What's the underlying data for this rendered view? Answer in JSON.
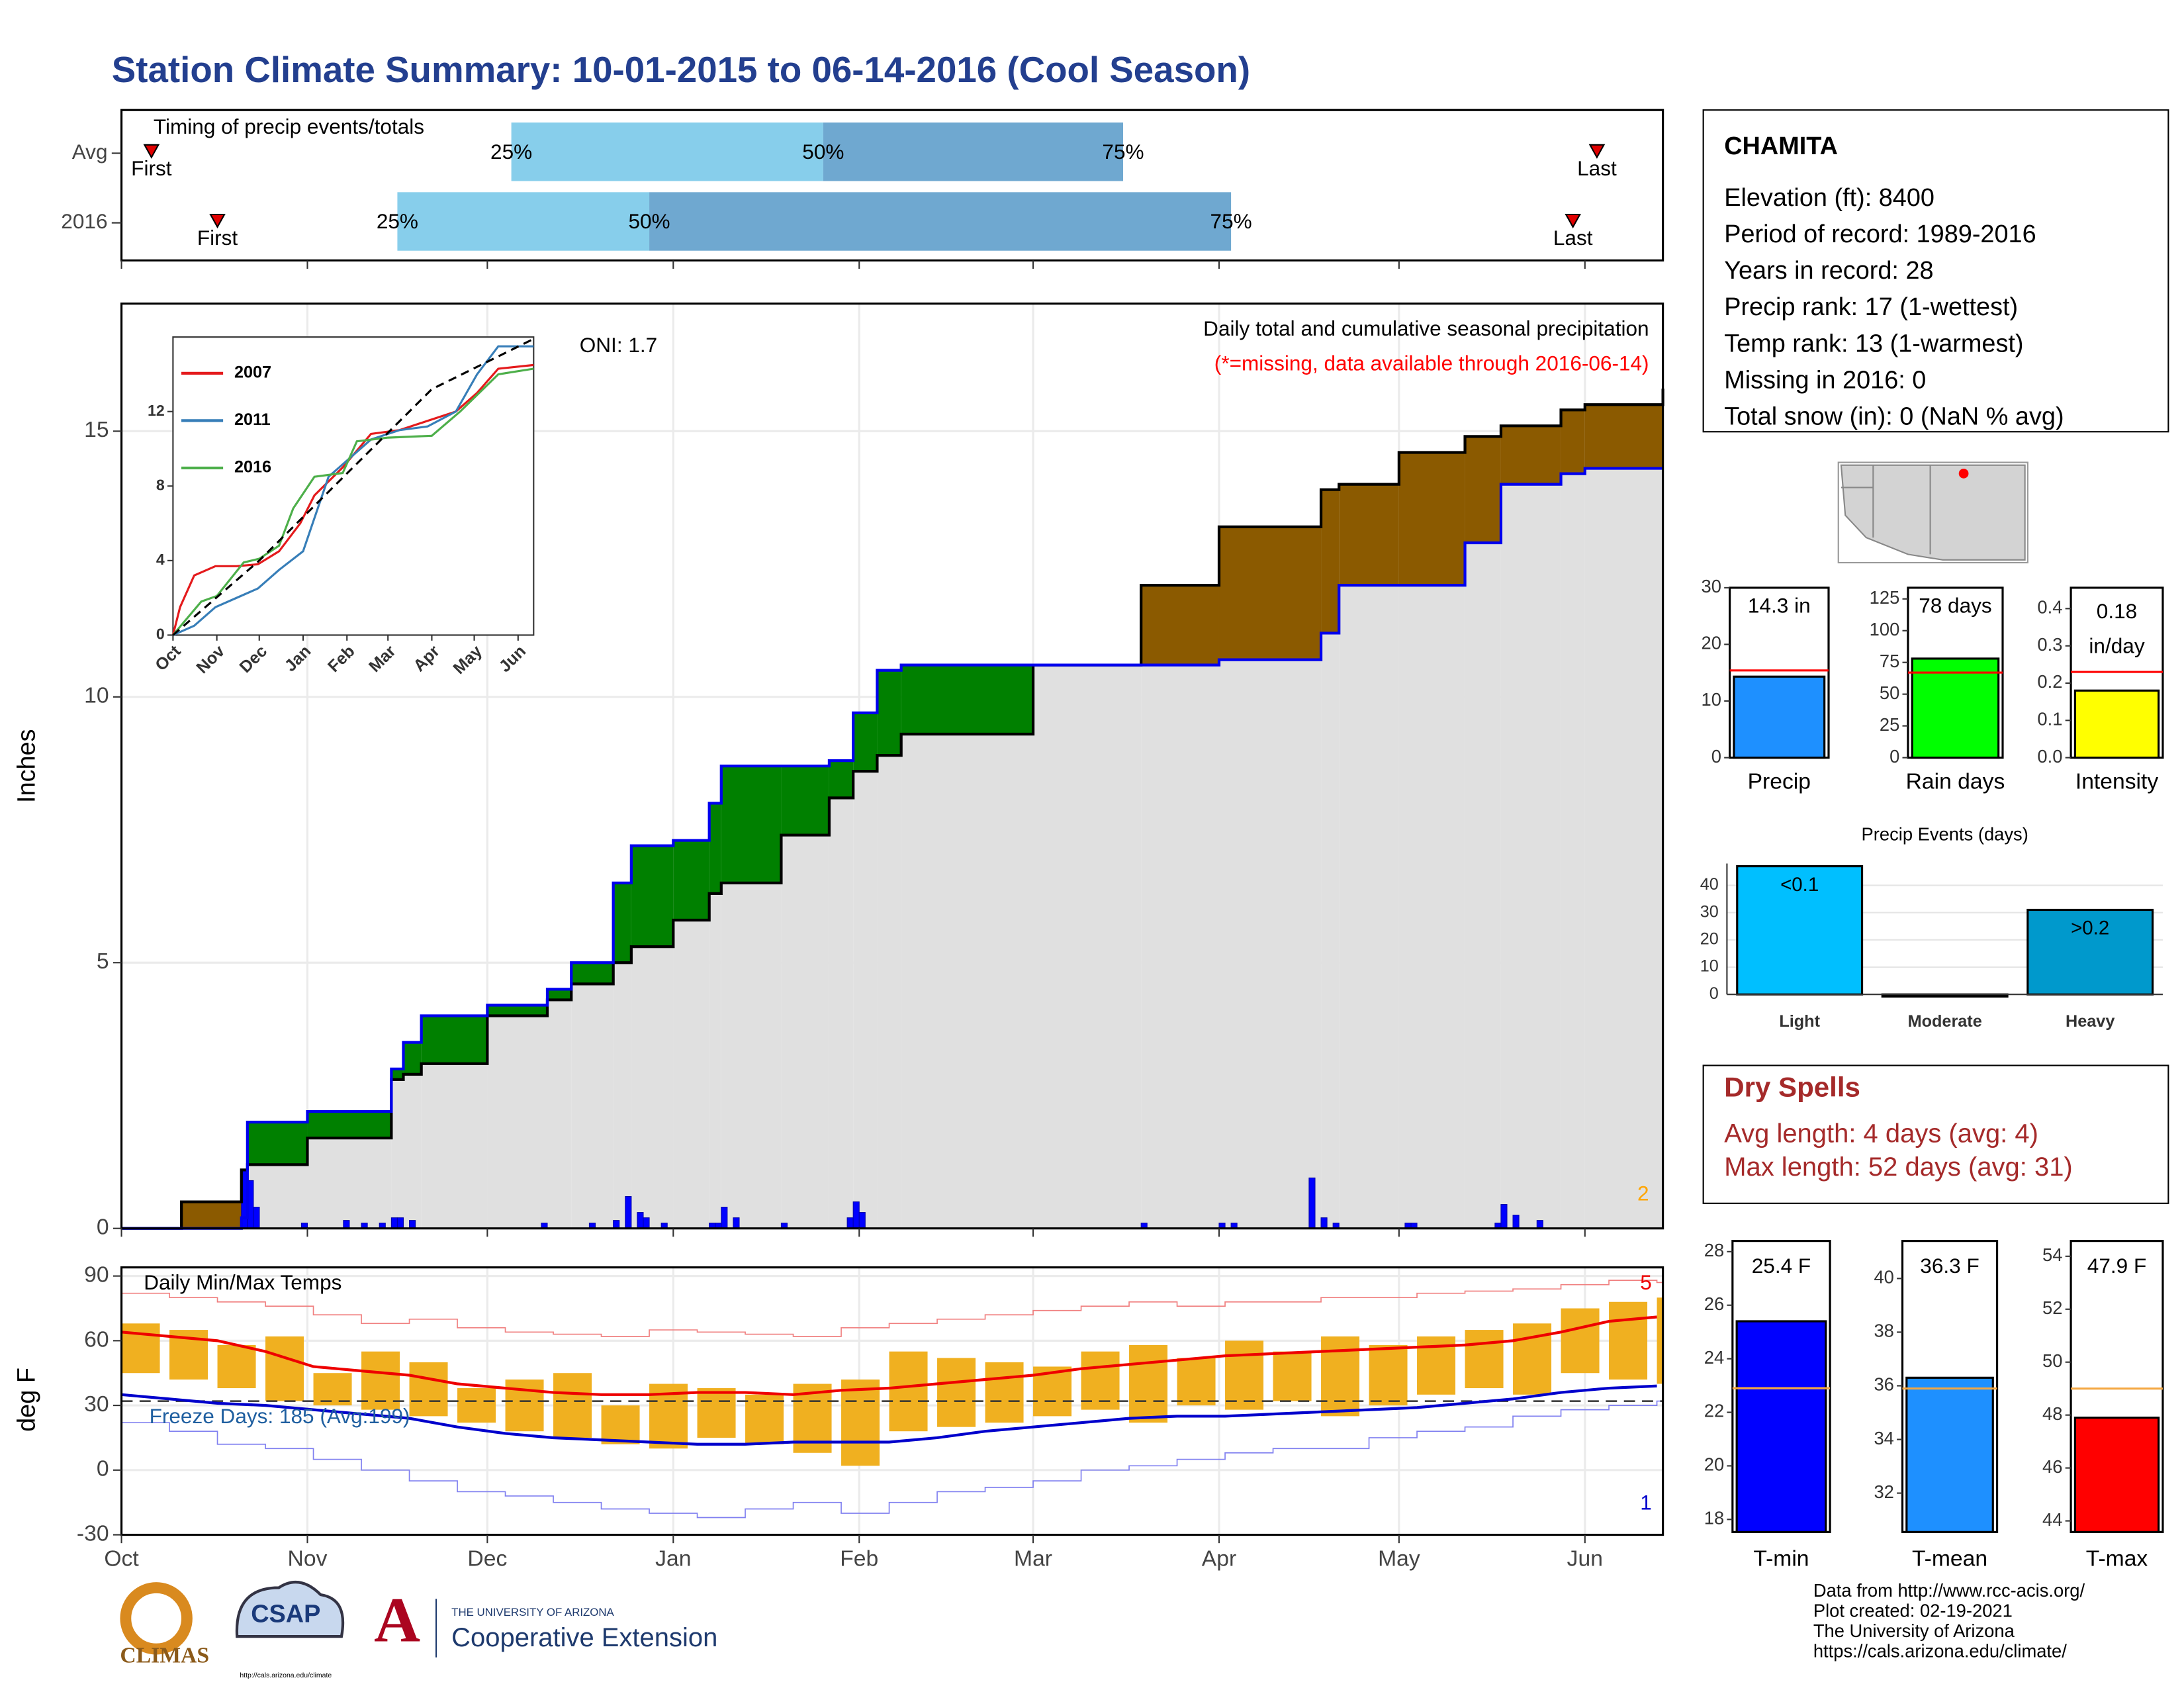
{
  "title": "Station Climate Summary: 10-01-2015 to 06-14-2016 (Cool Season)",
  "station": {
    "name": "CHAMITA",
    "lines": [
      "Elevation (ft): 8400",
      "Period of record: 1989-2016",
      "Years in record: 28",
      "Precip rank: 17 (1-wettest)",
      "Temp rank: 13 (1-warmest)",
      "Missing in 2016: 0",
      "Total snow (in): 0 (NaN % avg)"
    ]
  },
  "dry_spells": {
    "title": "Dry Spells",
    "lines": [
      "Avg length: 4 days (avg: 4)",
      "Max length: 52 days (avg: 31)"
    ]
  },
  "footer": [
    "Data from http://www.rcc-acis.org/",
    "Plot created: 02-19-2021",
    "The University of Arizona",
    "https://cals.arizona.edu/climate/"
  ],
  "logos": {
    "climas": "CLIMAS",
    "csap": "CSAP",
    "csap_url": "http://cals.arizona.edu/climate",
    "university": "THE UNIVERSITY OF ARIZONA",
    "extension": "Cooperative Extension"
  },
  "chart_data": [
    {
      "type": "timing",
      "title": "Timing of precip events/totals",
      "labels": [
        "First",
        "25%",
        "50%",
        "75%",
        "Last"
      ],
      "series": [
        {
          "name": "Avg",
          "values": [
            5,
            65,
            117,
            167,
            246
          ]
        },
        {
          "name": "2016",
          "values": [
            16,
            46,
            88,
            185,
            242
          ]
        }
      ],
      "colors": [
        "#87ceeb",
        "#6fa8d0"
      ],
      "marker_color": "#e00000",
      "xlim": [
        0,
        257
      ],
      "xticks": [
        0,
        31,
        61,
        92,
        123,
        152,
        183,
        213,
        244
      ]
    },
    {
      "type": "area",
      "title": "Daily total and cumulative seasonal precipitation",
      "subtitle": "(*=missing, data available through 2016-06-14)",
      "annotation": "ONI: 1.7",
      "corner_label": "2",
      "ylabel": "Inches",
      "xlim": [
        0,
        257
      ],
      "ylim": [
        0,
        17.4
      ],
      "yticks": [
        0,
        5,
        10,
        15
      ],
      "xticks": [
        0,
        31,
        61,
        92,
        123,
        152,
        183,
        213,
        244
      ],
      "grid": true,
      "x": [
        0,
        10,
        20,
        21,
        31,
        45,
        47,
        50,
        61,
        71,
        75,
        82,
        85,
        92,
        98,
        100,
        110,
        118,
        122,
        126,
        130,
        152,
        170,
        183,
        200,
        203,
        213,
        224,
        230,
        240,
        244,
        257
      ],
      "series": [
        {
          "color": "#0000ee",
          "values": [
            0,
            0,
            0.2,
            2.0,
            2.2,
            3.0,
            3.5,
            4.0,
            4.2,
            4.5,
            5.0,
            6.5,
            7.2,
            7.3,
            8.0,
            8.7,
            8.7,
            8.8,
            9.7,
            10.5,
            10.6,
            10.6,
            10.6,
            10.7,
            11.2,
            12.1,
            12.1,
            12.9,
            14.0,
            14.2,
            14.3,
            14.3
          ]
        },
        {
          "color": "#000000",
          "values": [
            0,
            0.5,
            1.1,
            1.2,
            1.7,
            2.8,
            2.9,
            3.1,
            4.0,
            4.3,
            4.6,
            5.0,
            5.3,
            5.8,
            6.3,
            6.5,
            7.4,
            8.1,
            8.6,
            8.9,
            9.3,
            10.6,
            12.1,
            13.2,
            13.9,
            14.0,
            14.6,
            14.9,
            15.1,
            15.4,
            15.5,
            15.8
          ]
        }
      ],
      "above_color": "#008000",
      "below_color": "#8b5a00",
      "base_color": "#e0e0e0",
      "daily": {
        "color": "#0000ff",
        "x": [
          20,
          21,
          22,
          30,
          37,
          40,
          43,
          45,
          46,
          48,
          70,
          78,
          82,
          84,
          86,
          87,
          90,
          98,
          99,
          100,
          102,
          110,
          121,
          122,
          123,
          170,
          183,
          185,
          198,
          200,
          202,
          214,
          215,
          229,
          230,
          232,
          236
        ],
        "values": [
          1.1,
          0.9,
          0.4,
          0.1,
          0.15,
          0.1,
          0.1,
          0.2,
          0.2,
          0.15,
          0.1,
          0.1,
          0.15,
          0.6,
          0.3,
          0.2,
          0.1,
          0.1,
          0.1,
          0.4,
          0.2,
          0.1,
          0.2,
          0.5,
          0.3,
          0.1,
          0.1,
          0.1,
          0.95,
          0.2,
          0.1,
          0.1,
          0.1,
          0.1,
          0.45,
          0.25,
          0.15
        ]
      }
    },
    {
      "type": "line",
      "xlim": [
        0,
        255
      ],
      "ylim": [
        0,
        16
      ],
      "yticks": [
        0,
        4,
        8,
        12
      ],
      "xticks": [
        {
          "value": 0,
          "label": "Oct"
        },
        {
          "value": 31,
          "label": "Nov"
        },
        {
          "value": 61,
          "label": "Dec"
        },
        {
          "value": 92,
          "label": "Jan"
        },
        {
          "value": 123,
          "label": "Feb"
        },
        {
          "value": 152,
          "label": "Mar"
        },
        {
          "value": 183,
          "label": "Apr"
        },
        {
          "value": 213,
          "label": "May"
        },
        {
          "value": 244,
          "label": "Jun"
        }
      ],
      "series": [
        {
          "name": "2007",
          "color": "#e41a1c",
          "x": [
            0,
            5,
            15,
            30,
            45,
            60,
            75,
            90,
            100,
            120,
            140,
            160,
            180,
            200,
            215,
            230,
            255
          ],
          "values": [
            0,
            1.5,
            3.2,
            3.7,
            3.7,
            3.8,
            4.5,
            6,
            7.5,
            9,
            10.8,
            11,
            11.5,
            12,
            13,
            14.3,
            14.5
          ]
        },
        {
          "name": "2011",
          "color": "#377eb8",
          "x": [
            0,
            15,
            30,
            45,
            60,
            75,
            92,
            110,
            125,
            140,
            160,
            180,
            200,
            215,
            230,
            255
          ],
          "values": [
            0,
            0.5,
            1.5,
            2.0,
            2.5,
            3.5,
            4.5,
            8.5,
            9.5,
            10.5,
            11,
            11.2,
            12,
            14,
            15.5,
            15.5
          ]
        },
        {
          "name": "2016",
          "color": "#4daf4a",
          "x": [
            0,
            20,
            31,
            50,
            61,
            75,
            85,
            100,
            120,
            130,
            152,
            183,
            203,
            230,
            255
          ],
          "values": [
            0,
            1.8,
            2.1,
            3.9,
            4.1,
            4.8,
            6.8,
            8.5,
            8.7,
            10.4,
            10.6,
            10.7,
            12,
            14,
            14.3
          ]
        },
        {
          "color": "#000000",
          "dash": true,
          "x": [
            0,
            61,
            122,
            183,
            255
          ],
          "values": [
            0,
            4,
            8.6,
            13.2,
            15.9
          ]
        }
      ]
    },
    {
      "type": "range",
      "title": "Daily Min/Max Temps",
      "annotation": "Freeze Days: 185 (Avg:199)",
      "corner_labels": [
        "5",
        "1"
      ],
      "ylabel": "deg F",
      "xlim": [
        0,
        257
      ],
      "ylim": [
        -30,
        94
      ],
      "yticks": [
        -30,
        0,
        30,
        60,
        90
      ],
      "grid": true,
      "xticks": [
        {
          "value": 0,
          "label": "Oct"
        },
        {
          "value": 31,
          "label": "Nov"
        },
        {
          "value": 61,
          "label": "Dec"
        },
        {
          "value": 92,
          "label": "Jan"
        },
        {
          "value": 123,
          "label": "Feb"
        },
        {
          "value": 152,
          "label": "Mar"
        },
        {
          "value": 183,
          "label": "Apr"
        },
        {
          "value": 213,
          "label": "May"
        },
        {
          "value": 244,
          "label": "Jun"
        }
      ],
      "x": [
        0,
        8,
        16,
        24,
        32,
        40,
        48,
        56,
        64,
        72,
        80,
        88,
        96,
        104,
        112,
        120,
        128,
        136,
        144,
        152,
        160,
        168,
        176,
        184,
        192,
        200,
        208,
        216,
        224,
        232,
        240,
        248,
        256
      ],
      "low": [
        45,
        42,
        38,
        32,
        30,
        28,
        25,
        22,
        18,
        15,
        12,
        10,
        15,
        12,
        8,
        2,
        18,
        20,
        22,
        25,
        28,
        22,
        30,
        28,
        32,
        25,
        30,
        35,
        38,
        35,
        45,
        42,
        40
      ],
      "high": [
        68,
        65,
        58,
        62,
        45,
        55,
        50,
        38,
        42,
        45,
        30,
        40,
        38,
        35,
        40,
        42,
        55,
        52,
        50,
        48,
        55,
        58,
        52,
        60,
        55,
        62,
        58,
        62,
        65,
        68,
        75,
        78,
        80
      ],
      "color": "#f0b020",
      "series": [
        {
          "color": "#ee0000",
          "width": 2,
          "values": [
            64,
            62,
            60,
            55,
            48,
            46,
            44,
            40,
            38,
            36,
            35,
            35,
            36,
            36,
            35,
            37,
            38,
            40,
            42,
            44,
            47,
            49,
            51,
            53,
            54,
            55,
            56,
            57,
            58,
            60,
            64,
            69,
            71
          ]
        },
        {
          "color": "#0000cc",
          "width": 2,
          "values": [
            35,
            33,
            31,
            30,
            28,
            26,
            24,
            20,
            17,
            15,
            14,
            13,
            12,
            12,
            13,
            13,
            13,
            15,
            18,
            20,
            22,
            24,
            25,
            25,
            26,
            27,
            28,
            29,
            31,
            33,
            36,
            38,
            39
          ]
        },
        {
          "color": "#f08080",
          "width": 0.8,
          "step": true,
          "values": [
            82,
            80,
            78,
            76,
            72,
            68,
            70,
            66,
            64,
            63,
            62,
            65,
            64,
            63,
            62,
            66,
            68,
            70,
            72,
            74,
            76,
            78,
            76,
            78,
            78,
            80,
            80,
            82,
            83,
            84,
            86,
            88,
            87
          ]
        },
        {
          "color": "#8080f0",
          "width": 0.8,
          "step": true,
          "values": [
            22,
            18,
            12,
            10,
            5,
            0,
            -5,
            -10,
            -12,
            -15,
            -18,
            -20,
            -22,
            -18,
            -15,
            -20,
            -15,
            -10,
            -8,
            -5,
            0,
            2,
            5,
            8,
            10,
            10,
            15,
            18,
            20,
            25,
            28,
            30,
            32
          ]
        }
      ],
      "freeze": 32
    },
    {
      "type": "bar",
      "categories": [
        "Precip"
      ],
      "values": [
        14.3
      ],
      "value_labels": [
        "14.3 in"
      ],
      "average": 15.4,
      "average_color": "#ff0000",
      "color": "#1e90ff",
      "ylim": [
        0,
        30
      ],
      "yticks": [
        0,
        10,
        20,
        30
      ]
    },
    {
      "type": "bar",
      "categories": [
        "Rain days"
      ],
      "values": [
        78
      ],
      "value_labels": [
        "78 days"
      ],
      "average": 67,
      "average_color": "#ff0000",
      "color": "#00ff00",
      "ylim": [
        0,
        133.8
      ],
      "yticks": [
        0,
        25,
        50,
        75,
        100,
        125
      ]
    },
    {
      "type": "bar",
      "categories": [
        "Intensity"
      ],
      "values": [
        0.18
      ],
      "value_labels": [
        "0.18"
      ],
      "unit": "in/day",
      "average": 0.23,
      "average_color": "#ff0000",
      "color": "#ffff00",
      "ylim": [
        0,
        0.456
      ],
      "yticks": [
        {
          "value": 0,
          "label": "0.0"
        },
        {
          "value": 0.1,
          "label": "0.1"
        },
        {
          "value": 0.2,
          "label": "0.2"
        },
        {
          "value": 0.3,
          "label": "0.3"
        },
        {
          "value": 0.4,
          "label": "0.4"
        }
      ]
    },
    {
      "type": "events",
      "title": "Precip Events (days)",
      "categories": [
        "Light",
        "Moderate",
        "Heavy"
      ],
      "values": [
        47,
        0,
        31
      ],
      "bar_labels": [
        "<0.1",
        null,
        ">0.2"
      ],
      "colors": [
        "#00bfff",
        "#00bfff",
        "#0099cc"
      ],
      "ylim": [
        0,
        48
      ],
      "yticks": [
        0,
        10,
        20,
        30,
        40
      ],
      "grid": true
    },
    {
      "type": "bar",
      "categories": [
        "T-min"
      ],
      "values": [
        25.4
      ],
      "value_labels": [
        "25.4 F"
      ],
      "average": 22.9,
      "average_color": "#f4a742",
      "color": "#0000ff",
      "ylim": [
        17.53,
        28.4
      ],
      "yticks": [
        18,
        20,
        22,
        24,
        26,
        28
      ]
    },
    {
      "type": "bar",
      "categories": [
        "T-mean"
      ],
      "values": [
        36.3
      ],
      "value_labels": [
        "36.3 F"
      ],
      "average": 35.9,
      "average_color": "#f4a742",
      "color": "#1e90ff",
      "ylim": [
        30.55,
        41.4
      ],
      "yticks": [
        32,
        34,
        36,
        38,
        40
      ]
    },
    {
      "type": "bar",
      "categories": [
        "T-max"
      ],
      "values": [
        47.9
      ],
      "value_labels": [
        "47.9 F"
      ],
      "average": 49.0,
      "average_color": "#f4a742",
      "color": "#ff0000",
      "ylim": [
        43.58,
        54.58
      ],
      "yticks": [
        44,
        46,
        48,
        50,
        52,
        54
      ]
    }
  ]
}
